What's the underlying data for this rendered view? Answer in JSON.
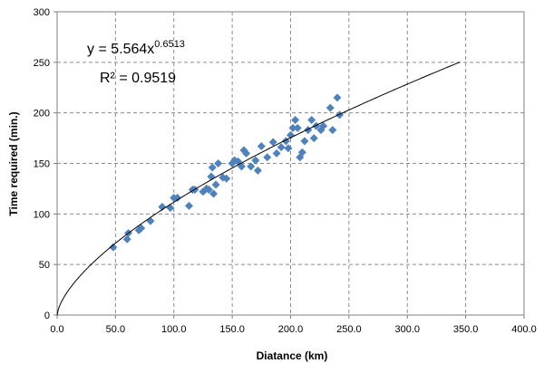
{
  "chart_data": {
    "type": "scatter",
    "xlabel": "Diatance (km)",
    "ylabel": "Time required (min.)",
    "xlim": [
      0,
      400
    ],
    "ylim": [
      0,
      300
    ],
    "xticks": [
      "0.0",
      "50.0",
      "100.0",
      "150.0",
      "200.0",
      "250.0",
      "300.0",
      "350.0",
      "400.0"
    ],
    "yticks": [
      "0",
      "50",
      "100",
      "150",
      "200",
      "250",
      "300"
    ],
    "grid": true,
    "marker_color": "#4f81bd",
    "trendline": {
      "type": "power",
      "coefficient": 5.564,
      "exponent": 0.6513,
      "x_range": [
        0,
        345
      ],
      "equation_prefix": "y = 5.564x",
      "equation_exponent": "0.6513",
      "r_squared_label": "R² = 0.9519"
    },
    "points": [
      [
        48,
        67
      ],
      [
        60,
        75
      ],
      [
        61,
        81
      ],
      [
        70,
        84
      ],
      [
        72,
        86
      ],
      [
        80,
        93
      ],
      [
        90,
        107
      ],
      [
        97,
        106
      ],
      [
        100,
        116
      ],
      [
        103,
        116
      ],
      [
        113,
        108
      ],
      [
        116,
        124
      ],
      [
        118,
        124
      ],
      [
        125,
        122
      ],
      [
        128,
        125
      ],
      [
        130,
        124
      ],
      [
        132,
        137
      ],
      [
        133,
        146
      ],
      [
        134,
        120
      ],
      [
        136,
        129
      ],
      [
        138,
        150
      ],
      [
        142,
        136
      ],
      [
        145,
        135
      ],
      [
        150,
        150
      ],
      [
        152,
        153
      ],
      [
        155,
        152
      ],
      [
        158,
        147
      ],
      [
        160,
        163
      ],
      [
        162,
        160
      ],
      [
        166,
        147
      ],
      [
        170,
        153
      ],
      [
        172,
        143
      ],
      [
        175,
        167
      ],
      [
        180,
        156
      ],
      [
        185,
        171
      ],
      [
        188,
        160
      ],
      [
        192,
        166
      ],
      [
        196,
        172
      ],
      [
        198,
        165
      ],
      [
        200,
        178
      ],
      [
        202,
        185
      ],
      [
        204,
        193
      ],
      [
        206,
        185
      ],
      [
        208,
        156
      ],
      [
        210,
        161
      ],
      [
        212,
        172
      ],
      [
        215,
        183
      ],
      [
        218,
        193
      ],
      [
        220,
        175
      ],
      [
        222,
        187
      ],
      [
        226,
        183
      ],
      [
        228,
        187
      ],
      [
        234,
        205
      ],
      [
        236,
        183
      ],
      [
        240,
        215
      ],
      [
        242,
        198
      ]
    ]
  }
}
